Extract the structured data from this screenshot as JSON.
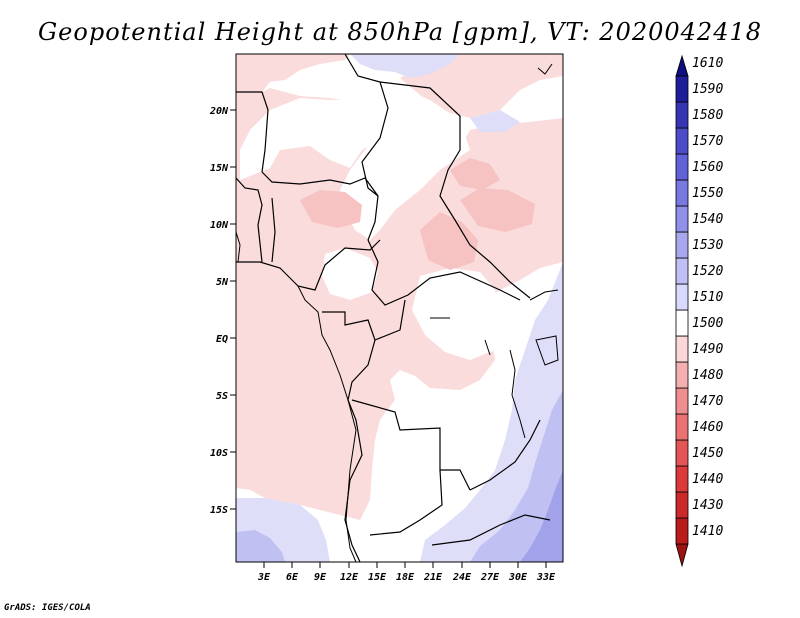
{
  "title": "Geopotential Height at 850hPa [gpm], VT: 2020042418",
  "credit": "GrADS: IGES/COLA",
  "map": {
    "lat_labels": [
      "20N",
      "15N",
      "10N",
      "5N",
      "EQ",
      "5S",
      "10S",
      "15S"
    ],
    "lon_labels": [
      "3E",
      "6E",
      "9E",
      "12E",
      "15E",
      "18E",
      "21E",
      "24E",
      "27E",
      "30E",
      "33E"
    ]
  },
  "colorbar": {
    "levels": [
      "1410",
      "1430",
      "1440",
      "1450",
      "1460",
      "1470",
      "1480",
      "1490",
      "1500",
      "1510",
      "1520",
      "1530",
      "1540",
      "1550",
      "1560",
      "1570",
      "1580",
      "1590",
      "1610"
    ],
    "colors": [
      "#9e1212",
      "#b81c1c",
      "#cc2a2a",
      "#dc3a3a",
      "#e45656",
      "#ea7272",
      "#ef8e8e",
      "#f4b0b0",
      "#fbd8d8",
      "#ffffff",
      "#d9d9fb",
      "#c0c0f5",
      "#a8a8ef",
      "#9090e8",
      "#7878e0",
      "#6262d8",
      "#4c4cc8",
      "#3636b4",
      "#1e1e98",
      "#0e0e80"
    ]
  },
  "colors": {
    "pink": "#fbdcdc",
    "pink_dark": "#f6c2c2",
    "blue_light": "#dedef9",
    "blue_mid": "#c0c0f2",
    "blue_dark": "#a2a2ea"
  }
}
